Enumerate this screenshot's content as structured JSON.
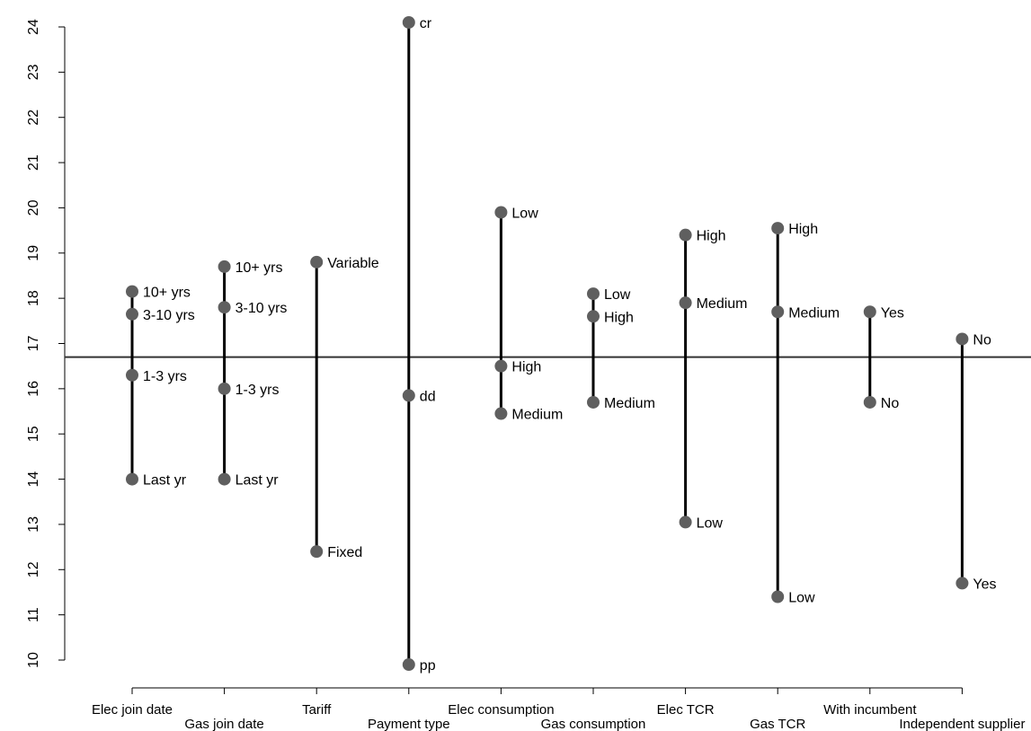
{
  "chart_data": {
    "type": "scatter",
    "title": "",
    "xlabel": "",
    "ylabel": "",
    "ylim": [
      9.6,
      24.4
    ],
    "yticks": [
      10,
      11,
      12,
      13,
      14,
      15,
      16,
      17,
      18,
      19,
      20,
      21,
      22,
      23,
      24
    ],
    "reference_line": 16.7,
    "grid": false,
    "colors": {
      "point": "#5f5f5f",
      "segment": "#000000",
      "reference": "#333333"
    },
    "categories": [
      {
        "name": "Elec join date",
        "label_row": 0,
        "points": [
          {
            "label": "10+ yrs",
            "value": 18.15
          },
          {
            "label": "3-10 yrs",
            "value": 17.65
          },
          {
            "label": "1-3 yrs",
            "value": 16.3
          },
          {
            "label": "Last yr",
            "value": 14.0
          }
        ]
      },
      {
        "name": "Gas join date",
        "label_row": 1,
        "points": [
          {
            "label": "10+ yrs",
            "value": 18.7
          },
          {
            "label": "3-10 yrs",
            "value": 17.8
          },
          {
            "label": "1-3 yrs",
            "value": 16.0
          },
          {
            "label": "Last yr",
            "value": 14.0
          }
        ]
      },
      {
        "name": "Tariff",
        "label_row": 0,
        "points": [
          {
            "label": "Variable",
            "value": 18.8
          },
          {
            "label": "Fixed",
            "value": 12.4
          }
        ]
      },
      {
        "name": "Payment type",
        "label_row": 1,
        "points": [
          {
            "label": "cr",
            "value": 24.1
          },
          {
            "label": "dd",
            "value": 15.85
          },
          {
            "label": "pp",
            "value": 9.9
          }
        ]
      },
      {
        "name": "Elec consumption",
        "label_row": 0,
        "points": [
          {
            "label": "Low",
            "value": 19.9
          },
          {
            "label": "High",
            "value": 16.5
          },
          {
            "label": "Medium",
            "value": 15.45
          }
        ]
      },
      {
        "name": "Gas consumption",
        "label_row": 1,
        "points": [
          {
            "label": "Low",
            "value": 18.1
          },
          {
            "label": "High",
            "value": 17.6
          },
          {
            "label": "Medium",
            "value": 15.7
          }
        ]
      },
      {
        "name": "Elec TCR",
        "label_row": 0,
        "points": [
          {
            "label": "High",
            "value": 19.4
          },
          {
            "label": "Medium",
            "value": 17.9
          },
          {
            "label": "Low",
            "value": 13.05
          }
        ]
      },
      {
        "name": "Gas TCR",
        "label_row": 1,
        "points": [
          {
            "label": "High",
            "value": 19.55
          },
          {
            "label": "Medium",
            "value": 17.7
          },
          {
            "label": "Low",
            "value": 11.4
          }
        ]
      },
      {
        "name": "With incumbent",
        "label_row": 0,
        "points": [
          {
            "label": "Yes",
            "value": 17.7
          },
          {
            "label": "No",
            "value": 15.7
          }
        ]
      },
      {
        "name": "Independent supplier",
        "label_row": 1,
        "points": [
          {
            "label": "No",
            "value": 17.1
          },
          {
            "label": "Yes",
            "value": 11.7
          }
        ]
      }
    ]
  }
}
